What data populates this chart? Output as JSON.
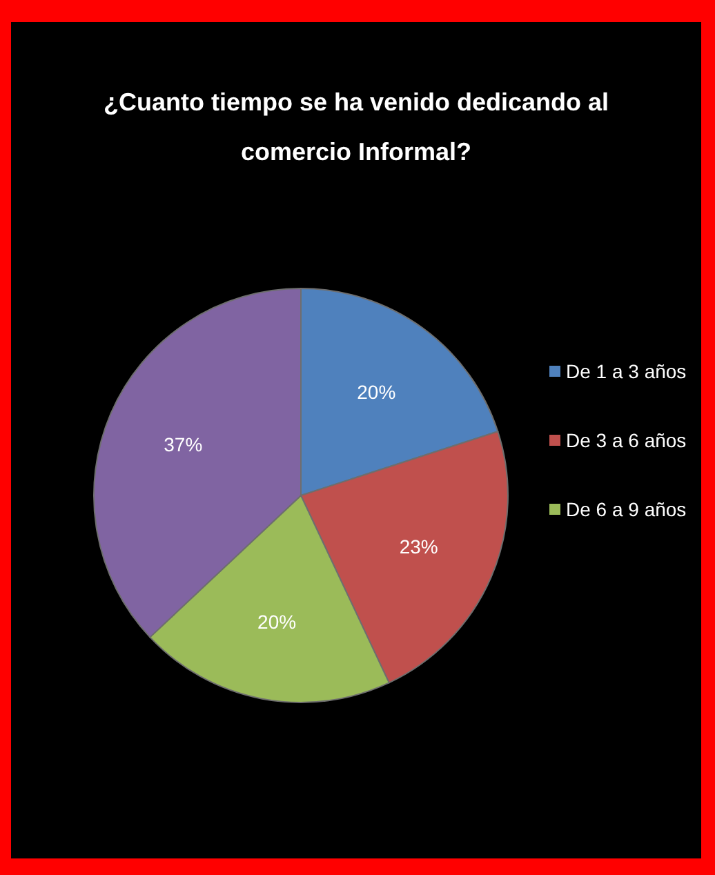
{
  "chart_data": {
    "type": "pie",
    "title": "¿Cuanto tiempo se ha venido dedicando al comercio Informal?",
    "categories": [
      "De 1 a 3 años",
      "De 3 a 6 años",
      "De 6 a 9 años",
      null
    ],
    "values": [
      20,
      23,
      20,
      37
    ],
    "value_labels": [
      "20%",
      "23%",
      "20%",
      "37%"
    ],
    "colors": [
      "#4f81bd",
      "#c0504d",
      "#9bbb59",
      "#8064a2"
    ],
    "legend": "right"
  }
}
